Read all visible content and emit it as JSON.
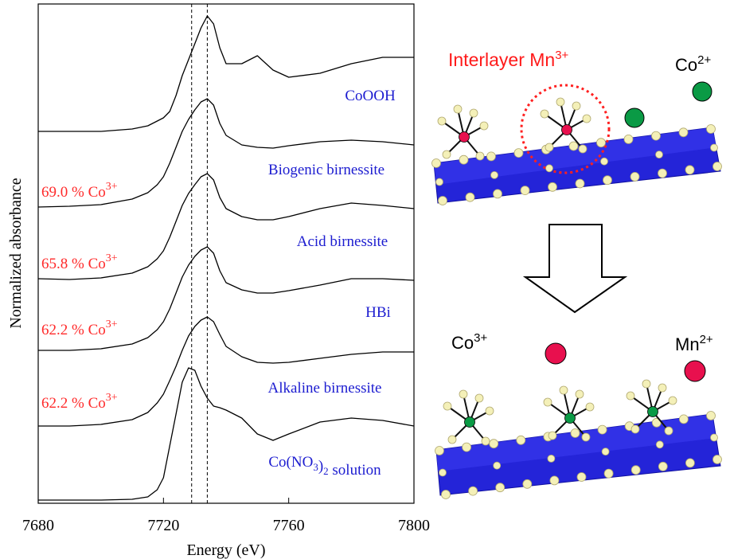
{
  "chart_data": {
    "type": "line",
    "x_label": "Energy (eV)",
    "y_label": "Normalized absorbance",
    "x": [
      7680,
      7690,
      7700,
      7710,
      7715,
      7718,
      7720,
      7722,
      7724,
      7726,
      7728,
      7730,
      7732,
      7734,
      7736,
      7738,
      7740,
      7745,
      7750,
      7755,
      7760,
      7770,
      7780,
      7790,
      7800
    ],
    "xlim": [
      7680,
      7800
    ],
    "xticks": [
      7680,
      7720,
      7760,
      7800
    ],
    "ylim": [
      0,
      6.27
    ],
    "vlines": [
      7729,
      7734
    ],
    "series": [
      {
        "name": "CoOOH",
        "color": "#000000",
        "values": [
          4.67,
          4.67,
          4.67,
          4.7,
          4.74,
          4.8,
          4.84,
          4.92,
          5.12,
          5.37,
          5.57,
          5.77,
          5.97,
          6.12,
          6.02,
          5.72,
          5.52,
          5.52,
          5.62,
          5.44,
          5.35,
          5.4,
          5.52,
          5.6,
          5.6
        ]
      },
      {
        "name": "Biogenic birnessite",
        "color": "#000000",
        "annotation": "69.0 % Co3+",
        "values": [
          3.72,
          3.73,
          3.75,
          3.82,
          3.9,
          4.0,
          4.1,
          4.27,
          4.47,
          4.67,
          4.82,
          4.94,
          5.04,
          5.08,
          5.0,
          4.77,
          4.62,
          4.5,
          4.47,
          4.46,
          4.49,
          4.54,
          4.56,
          4.54,
          4.5
        ]
      },
      {
        "name": "Acid birnessite",
        "color": "#000000",
        "annotation": "65.8 % Co3+",
        "values": [
          2.82,
          2.81,
          2.83,
          2.89,
          2.97,
          3.07,
          3.17,
          3.34,
          3.54,
          3.74,
          3.89,
          4.0,
          4.1,
          4.14,
          4.06,
          3.84,
          3.7,
          3.6,
          3.56,
          3.56,
          3.6,
          3.7,
          3.77,
          3.74,
          3.7
        ]
      },
      {
        "name": "HBi",
        "color": "#000000",
        "annotation": "62.2 % Co3+",
        "values": [
          1.92,
          1.92,
          1.94,
          2.0,
          2.08,
          2.18,
          2.28,
          2.44,
          2.64,
          2.84,
          2.99,
          3.1,
          3.18,
          3.22,
          3.14,
          2.92,
          2.77,
          2.68,
          2.64,
          2.64,
          2.67,
          2.74,
          2.82,
          2.82,
          2.8
        ]
      },
      {
        "name": "Alkaline birnessite",
        "color": "#000000",
        "annotation": "62.2 % Co3+",
        "values": [
          0.97,
          0.97,
          0.99,
          1.05,
          1.14,
          1.26,
          1.37,
          1.54,
          1.72,
          1.92,
          2.1,
          2.22,
          2.3,
          2.34,
          2.28,
          2.12,
          1.97,
          1.84,
          1.77,
          1.76,
          1.77,
          1.82,
          1.87,
          1.9,
          1.9
        ]
      },
      {
        "name": "Co(NO3)2 solution",
        "color": "#000000",
        "values": [
          0.04,
          0.04,
          0.04,
          0.05,
          0.08,
          0.17,
          0.32,
          0.72,
          1.12,
          1.52,
          1.7,
          1.67,
          1.47,
          1.32,
          1.22,
          1.2,
          1.17,
          1.07,
          0.87,
          0.79,
          0.87,
          1.02,
          1.07,
          1.04,
          0.97
        ]
      }
    ]
  },
  "diagram": {
    "top_label": "Interlayer Mn3+",
    "top_ion": "Co2+",
    "bottom_left_label": "Co3+",
    "bottom_ion": "Mn2+"
  }
}
